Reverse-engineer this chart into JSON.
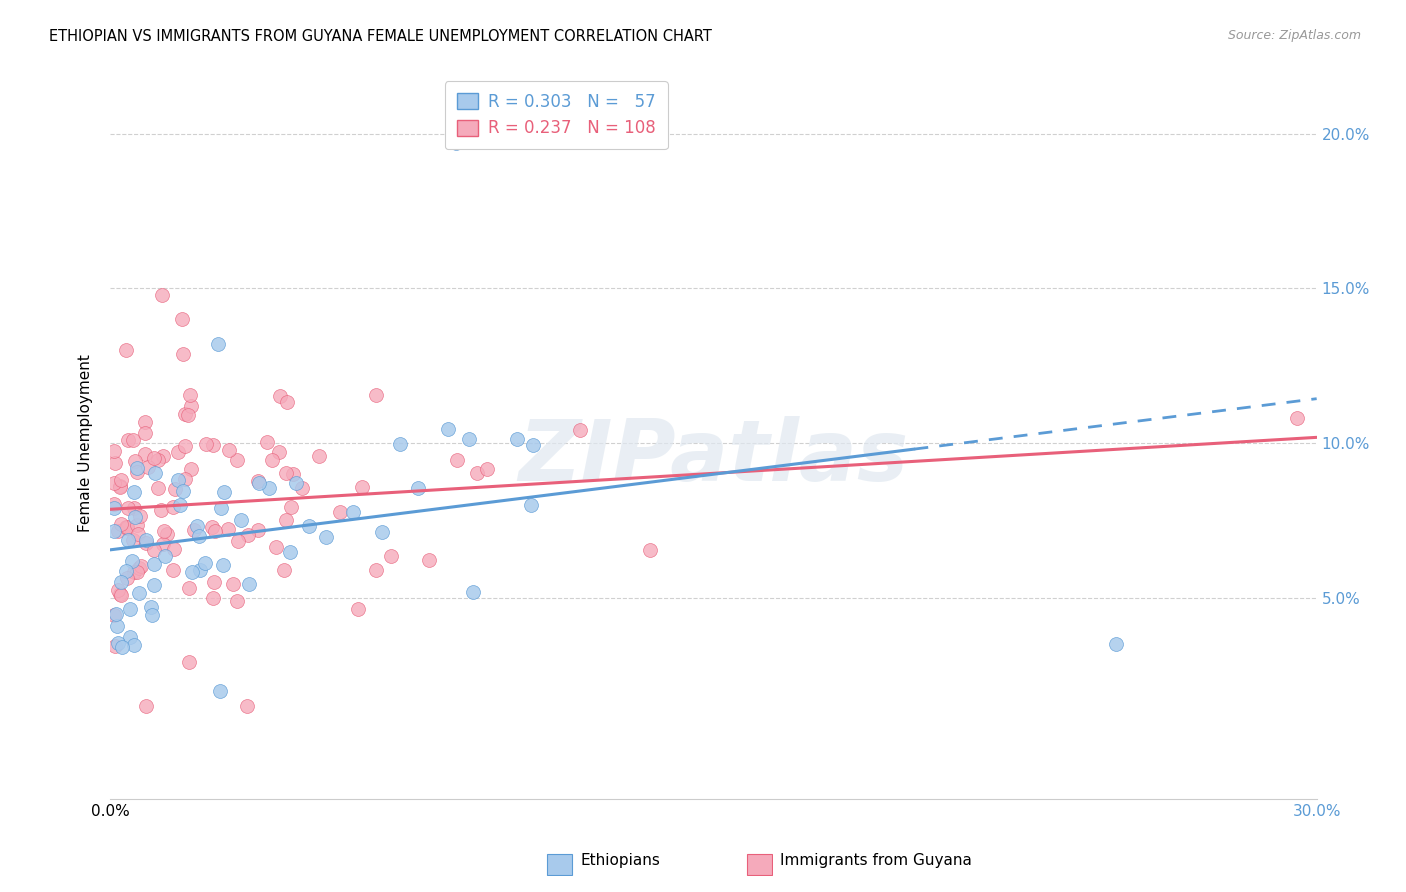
{
  "title": "ETHIOPIAN VS IMMIGRANTS FROM GUYANA FEMALE UNEMPLOYMENT CORRELATION CHART",
  "source": "Source: ZipAtlas.com",
  "ylabel": "Female Unemployment",
  "xlim": [
    0.0,
    0.3
  ],
  "ylim": [
    -0.015,
    0.215
  ],
  "yticks": [
    0.05,
    0.1,
    0.15,
    0.2
  ],
  "ytick_labels": [
    "5.0%",
    "10.0%",
    "15.0%",
    "20.0%"
  ],
  "xticks": [
    0.0,
    0.05,
    0.1,
    0.15,
    0.2,
    0.25,
    0.3
  ],
  "blue_color": "#5b9bd5",
  "pink_color": "#e8607a",
  "blue_fill": "#a8caec",
  "pink_fill": "#f5aabb",
  "blue_R": 0.303,
  "blue_N": 57,
  "pink_R": 0.237,
  "pink_N": 108,
  "legend_label_blue": "Ethiopians",
  "legend_label_pink": "Immigrants from Guyana",
  "watermark": "ZIPatlas",
  "eth_intercept": 0.062,
  "eth_slope": 0.22,
  "guy_intercept": 0.075,
  "guy_slope": 0.098
}
